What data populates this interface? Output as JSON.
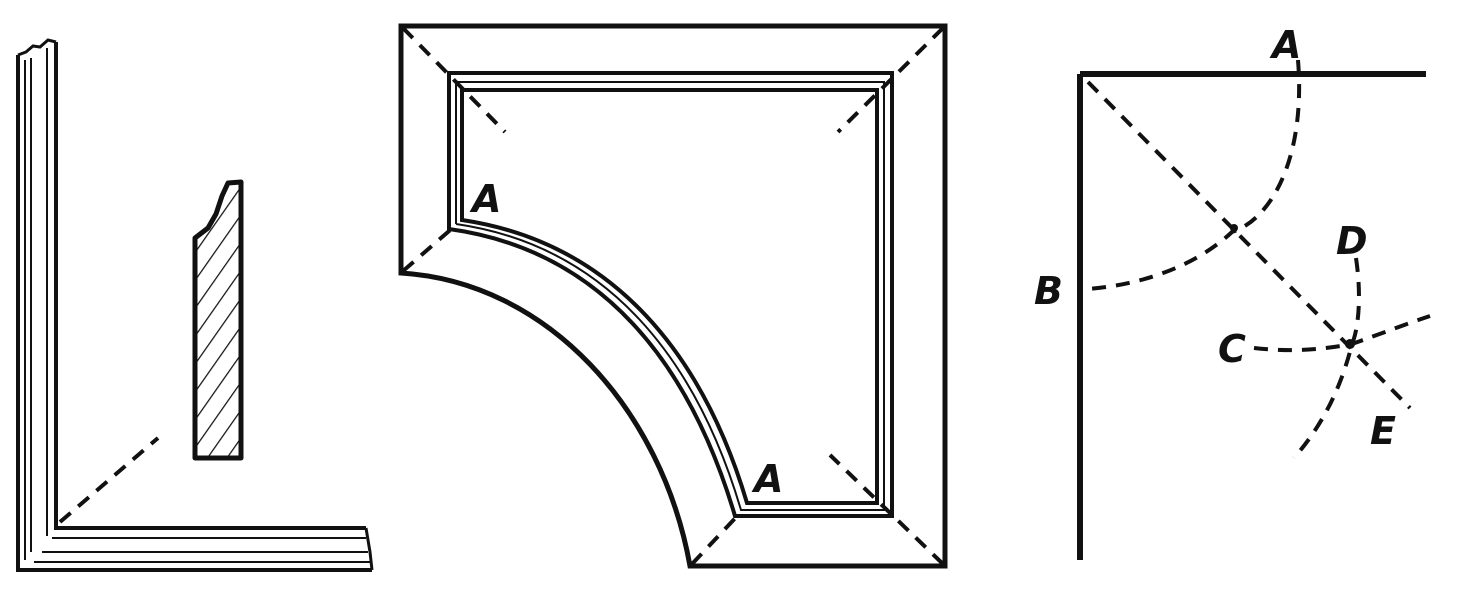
{
  "figure_1": {},
  "figure_2": {
    "labels": {
      "upper": "A",
      "lower": "A"
    }
  },
  "figure_3": {
    "labels": {
      "a": "A",
      "b": "B",
      "c": "C",
      "d": "D",
      "e": "E"
    }
  },
  "colors": {
    "ink": "#111111",
    "background": "#ffffff"
  }
}
